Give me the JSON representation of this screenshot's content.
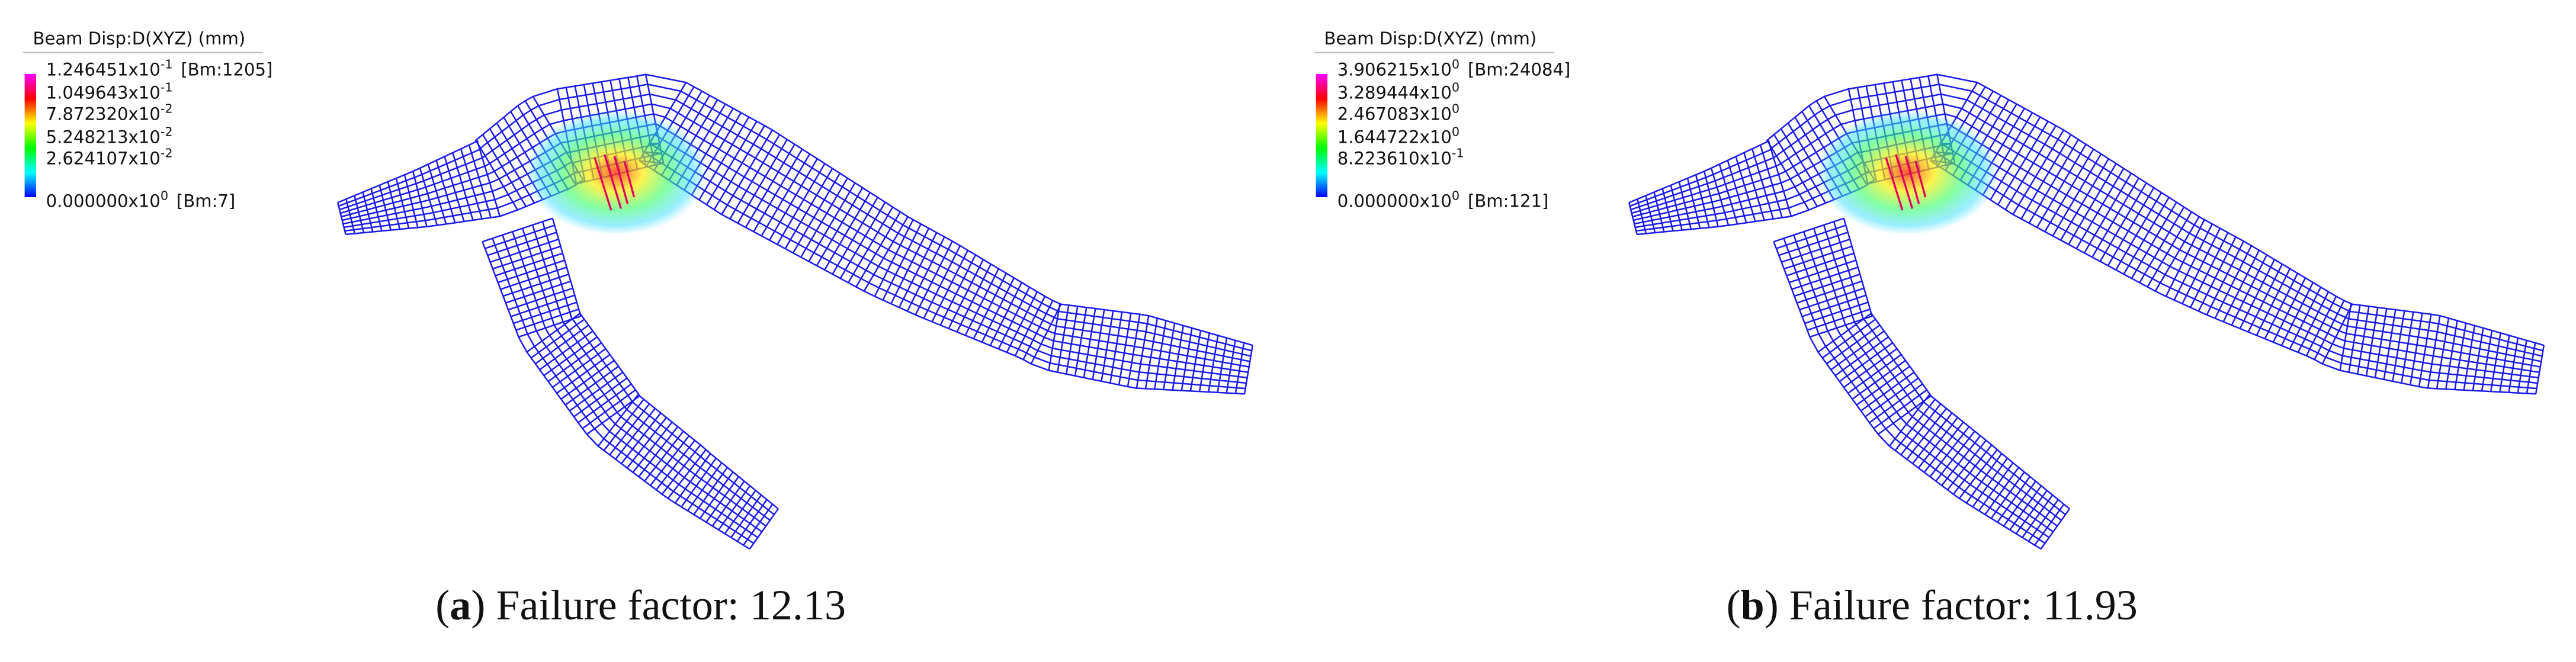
{
  "panels": [
    {
      "legend": {
        "title": "Beam Disp:D(XYZ) (mm)",
        "entries": [
          {
            "mantissa": "1.246451x10",
            "exponent": "-1",
            "suffix": "[Bm:1205]"
          },
          {
            "mantissa": "1.049643x10",
            "exponent": "-1",
            "suffix": ""
          },
          {
            "mantissa": "7.872320x10",
            "exponent": "-2",
            "suffix": ""
          },
          {
            "mantissa": "5.248213x10",
            "exponent": "-2",
            "suffix": ""
          },
          {
            "mantissa": "2.624107x10",
            "exponent": "-2",
            "suffix": ""
          },
          {
            "mantissa": "0.000000x10",
            "exponent": "0",
            "suffix": "[Bm:7]"
          }
        ]
      },
      "caption": {
        "prefix": "(",
        "letter": "a",
        "text": ") Failure factor: 12.13"
      }
    },
    {
      "legend": {
        "title": "Beam Disp:D(XYZ) (mm)",
        "entries": [
          {
            "mantissa": "3.906215x10",
            "exponent": "0",
            "suffix": "[Bm:24084]"
          },
          {
            "mantissa": "3.289444x10",
            "exponent": "0",
            "suffix": ""
          },
          {
            "mantissa": "2.467083x10",
            "exponent": "0",
            "suffix": ""
          },
          {
            "mantissa": "1.644722x10",
            "exponent": "0",
            "suffix": ""
          },
          {
            "mantissa": "8.223610x10",
            "exponent": "-1",
            "suffix": ""
          },
          {
            "mantissa": "0.000000x10",
            "exponent": "0",
            "suffix": "[Bm:121]"
          }
        ]
      },
      "caption": {
        "prefix": "(",
        "letter": "b",
        "text": ") Failure factor: 11.93"
      }
    }
  ]
}
